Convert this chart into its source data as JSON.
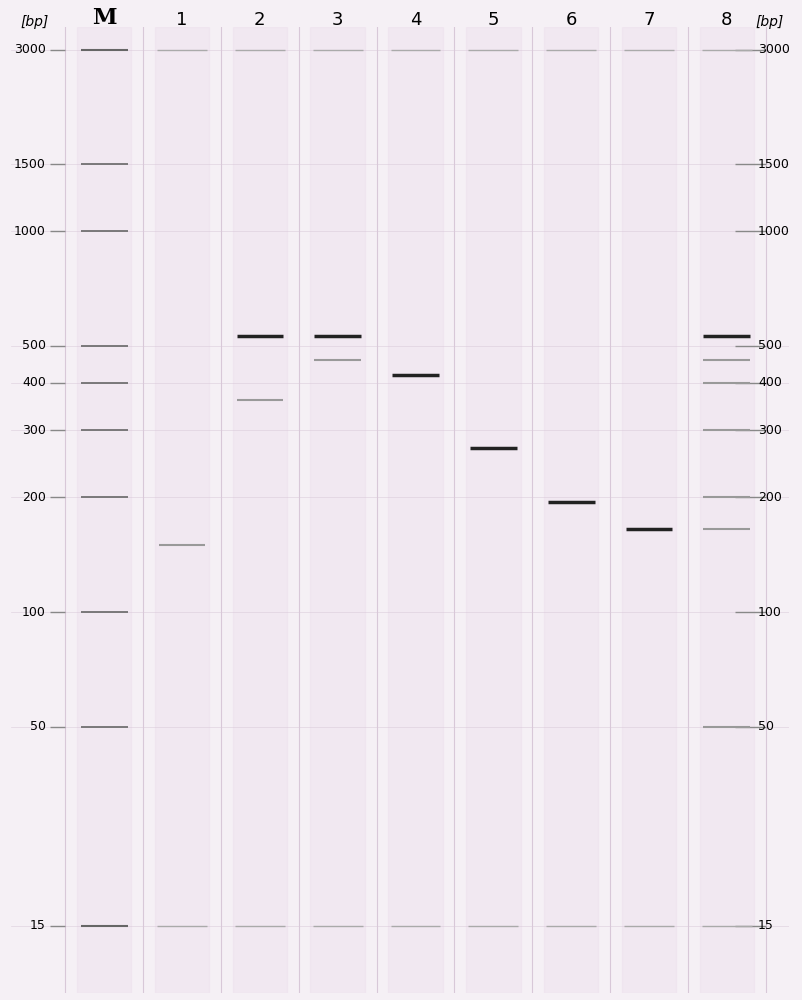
{
  "background_color": "#f5f0f5",
  "grid_color": "#d8c8d8",
  "lane_color": "#e8d8e8",
  "marker_labels": [
    3000,
    1500,
    1000,
    500,
    400,
    300,
    200,
    100,
    50,
    15
  ],
  "left_axis_label": "[bp]",
  "right_axis_label": "[bp]",
  "column_labels": [
    "M",
    "1",
    "2",
    "3",
    "4",
    "5",
    "6",
    "7",
    "8"
  ],
  "ymin": 10,
  "ymax": 3200,
  "ladder_bands": [
    3000,
    1500,
    1000,
    500,
    400,
    300,
    200,
    100,
    50,
    15
  ],
  "sample_bands": {
    "1": [
      150
    ],
    "2": [
      530,
      360
    ],
    "3": [
      530,
      460
    ],
    "4": [
      420
    ],
    "5": [
      270
    ],
    "6": [
      195
    ],
    "7": [
      165
    ],
    "8": [
      530,
      460,
      400,
      300,
      200,
      165,
      50
    ]
  },
  "band_color_ladder": "#888888",
  "band_color_sample_dark": "#222222",
  "band_color_sample_light": "#999999",
  "top_band_color": "#555555",
  "bottom_band_color": "#555555",
  "lane_positions": {
    "M": 0.12,
    "1": 0.22,
    "2": 0.32,
    "3": 0.42,
    "4": 0.52,
    "5": 0.62,
    "6": 0.72,
    "7": 0.82,
    "8": 0.92
  }
}
